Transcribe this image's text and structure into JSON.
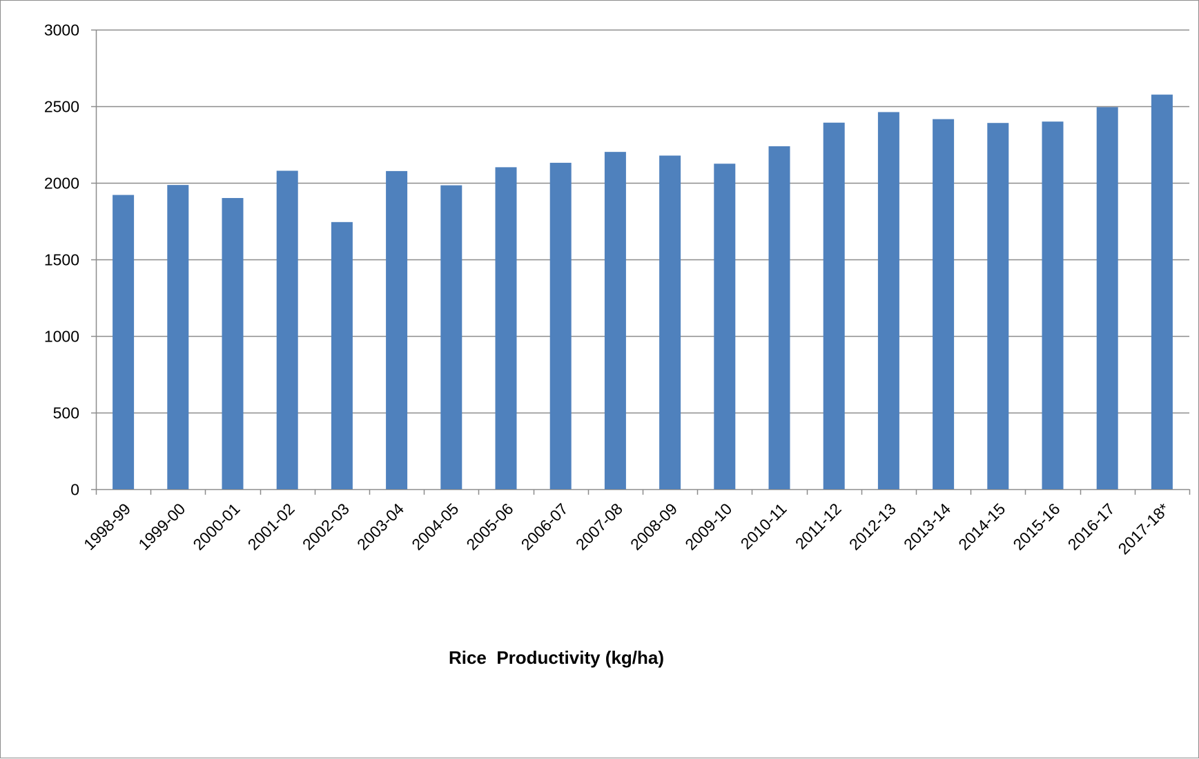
{
  "chart_data": {
    "type": "bar",
    "title": "",
    "xlabel": "",
    "ylabel": "",
    "categories": [
      "1998-99",
      "1999-00",
      "2000-01",
      "2001-02",
      "2002-03",
      "2003-04",
      "2004-05",
      "2005-06",
      "2006-07",
      "2007-08",
      "2008-09",
      "2009-10",
      "2010-11",
      "2011-12",
      "2012-13",
      "2013-14",
      "2014-15",
      "2015-16",
      "2016-17",
      "2017-18*"
    ],
    "series": [
      {
        "name": "Rice  Productivity (kg/ha)",
        "values": [
          1921,
          1986,
          1901,
          2079,
          1744,
          2077,
          1984,
          2102,
          2131,
          2202,
          2178,
          2125,
          2239,
          2393,
          2462,
          2416,
          2391,
          2400,
          2494,
          2576
        ],
        "color": "#4f81bd"
      }
    ],
    "ylim": [
      0,
      3000
    ],
    "yticks": [
      0,
      500,
      1000,
      1500,
      2000,
      2500,
      3000
    ],
    "grid": true,
    "legend_position": "bottom"
  }
}
